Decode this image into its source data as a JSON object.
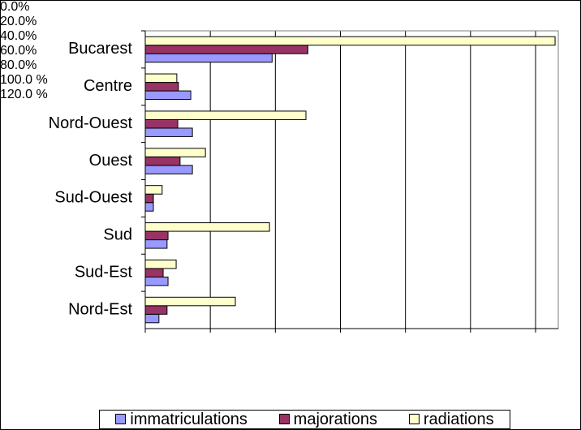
{
  "chart_data": {
    "type": "bar",
    "orientation": "horizontal",
    "categories": [
      "Bucarest",
      "Centre",
      "Nord-Ouest",
      "Ouest",
      "Sud-Ouest",
      "Sud",
      "Sud-Est",
      "Nord-Est"
    ],
    "series": [
      {
        "name": "immatriculations",
        "color": "#9999ff",
        "values": [
          39,
          14,
          14.5,
          14.5,
          2.5,
          6.7,
          7,
          4.2
        ]
      },
      {
        "name": "majorations",
        "color": "#993366",
        "values": [
          50,
          10.2,
          10,
          10.7,
          2.5,
          7,
          5.5,
          6.7
        ]
      },
      {
        "name": "radiations",
        "color": "#ffffcc",
        "values": [
          126,
          9.7,
          49.4,
          18.5,
          5.2,
          38.2,
          9.5,
          27.7
        ]
      }
    ],
    "xlim": [
      0,
      120
    ],
    "xticks": [
      {
        "value": 0,
        "label": "0.0%"
      },
      {
        "value": 20,
        "label": "20.0%"
      },
      {
        "value": 40,
        "label": "40.0%"
      },
      {
        "value": 60,
        "label": "60.0%"
      },
      {
        "value": 80,
        "label": "80.0%"
      },
      {
        "value": 100,
        "label": "100.0 %"
      },
      {
        "value": 120,
        "label": "120.0 %"
      }
    ],
    "grid": true,
    "legend": "bottom"
  }
}
